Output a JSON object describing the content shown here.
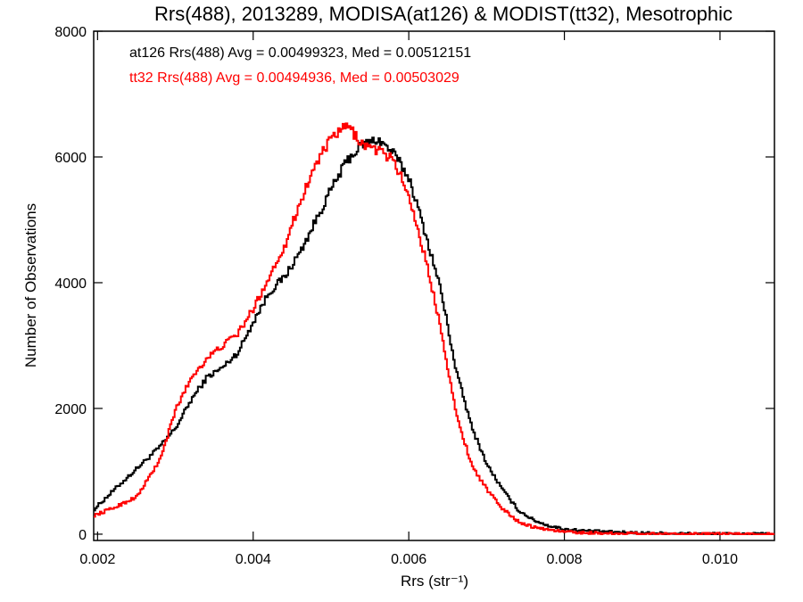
{
  "chart_data": {
    "type": "line",
    "title": "Rrs(488), 2013289, MODISA(at126) & MODIST(tt32), Mesotrophic",
    "xlabel": "Rrs (str⁻¹)",
    "ylabel": "Number of Observations",
    "xlim": [
      0.00195,
      0.0107
    ],
    "ylim": [
      -100,
      8000
    ],
    "xticks": [
      0.002,
      0.004,
      0.006,
      0.008,
      0.01
    ],
    "xtick_labels": [
      "0.002",
      "0.004",
      "0.006",
      "0.008",
      "0.010"
    ],
    "yticks": [
      0,
      2000,
      4000,
      6000,
      8000
    ],
    "ytick_labels": [
      "0",
      "2000",
      "4000",
      "6000",
      "8000"
    ],
    "grid": false,
    "legend_position": "top-left",
    "series": [
      {
        "name": "at126 Rrs(488) Avg = 0.00499323, Med = 0.00512151",
        "color": "#000000",
        "x": [
          0.00195,
          0.0022,
          0.0025,
          0.0028,
          0.003,
          0.0032,
          0.0034,
          0.0036,
          0.0038,
          0.004,
          0.0042,
          0.0044,
          0.0046,
          0.0048,
          0.005,
          0.0052,
          0.0054,
          0.0056,
          0.0058,
          0.006,
          0.0062,
          0.0064,
          0.0066,
          0.0068,
          0.007,
          0.0072,
          0.0074,
          0.0076,
          0.0078,
          0.008,
          0.0082,
          0.0085,
          0.009,
          0.0095,
          0.01,
          0.0107
        ],
        "y": [
          400,
          700,
          1050,
          1400,
          1700,
          2150,
          2500,
          2650,
          2900,
          3400,
          3850,
          4100,
          4500,
          5000,
          5500,
          5950,
          6200,
          6280,
          6050,
          5650,
          4800,
          3900,
          2600,
          1700,
          1100,
          700,
          380,
          220,
          130,
          80,
          60,
          40,
          20,
          10,
          5,
          2
        ]
      },
      {
        "name": "tt32 Rrs(488) Avg = 0.00494936, Med = 0.00503029",
        "color": "#ff0000",
        "x": [
          0.00195,
          0.0022,
          0.0025,
          0.0028,
          0.003,
          0.0032,
          0.0034,
          0.0036,
          0.0038,
          0.004,
          0.0042,
          0.0044,
          0.0046,
          0.0048,
          0.005,
          0.0052,
          0.0054,
          0.0056,
          0.0058,
          0.006,
          0.0062,
          0.0064,
          0.0066,
          0.0068,
          0.007,
          0.0072,
          0.0074,
          0.0076,
          0.0078,
          0.008,
          0.0082,
          0.0085,
          0.009,
          0.0095,
          0.01,
          0.0107
        ],
        "y": [
          300,
          420,
          600,
          1200,
          2000,
          2500,
          2800,
          3000,
          3200,
          3600,
          4100,
          4600,
          5300,
          5900,
          6300,
          6500,
          6200,
          6100,
          5950,
          5350,
          4400,
          3300,
          1900,
          1100,
          700,
          400,
          200,
          110,
          70,
          40,
          25,
          15,
          8,
          4,
          2,
          1
        ]
      }
    ]
  }
}
